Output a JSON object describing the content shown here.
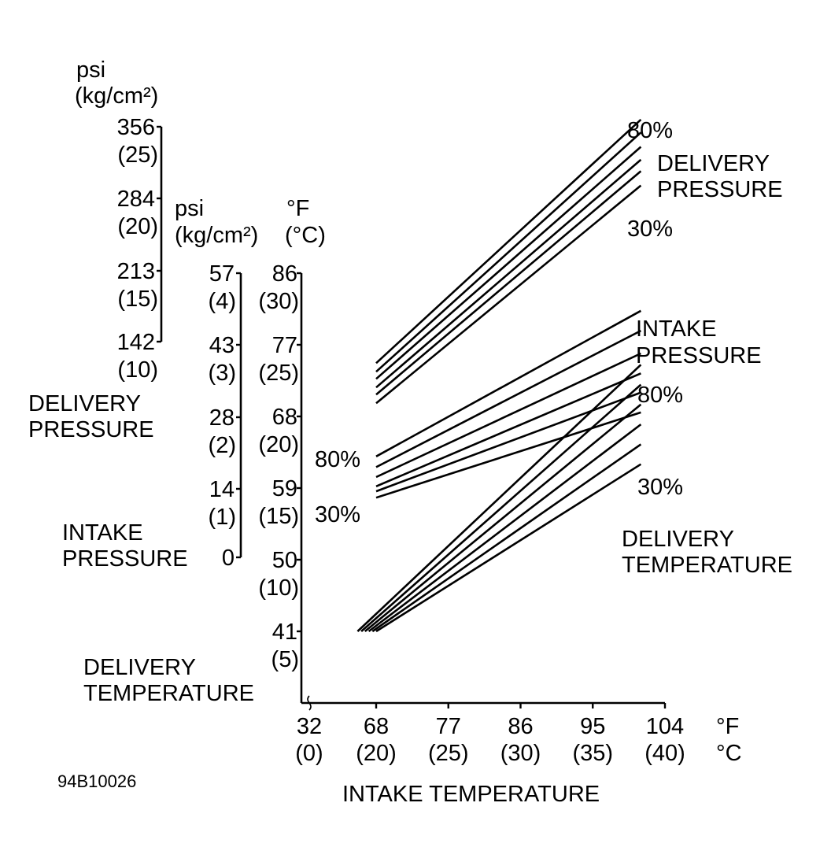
{
  "figure_id": "94B10026",
  "chart_data": {
    "type": "line",
    "title": "",
    "xlabel": "INTAKE TEMPERATURE",
    "x_units": {
      "f": "°F",
      "c": "°C"
    },
    "x_ticks": [
      {
        "f": "32",
        "c": "(0)",
        "value": 32
      },
      {
        "f": "68",
        "c": "(20)",
        "value": 68
      },
      {
        "f": "77",
        "c": "(25)",
        "value": 77
      },
      {
        "f": "86",
        "c": "(30)",
        "value": 86
      },
      {
        "f": "95",
        "c": "(35)",
        "value": 95
      },
      {
        "f": "104",
        "c": "(40)",
        "value": 104
      }
    ],
    "y_axes": [
      {
        "name": "DELIVERY PRESSURE",
        "unit": [
          "psi",
          "(kg/cm²)"
        ],
        "label": [
          "DELIVERY",
          "PRESSURE"
        ],
        "ticks": [
          {
            "main": "356",
            "sub": "(25)"
          },
          {
            "main": "284",
            "sub": "(20)"
          },
          {
            "main": "213",
            "sub": "(15)"
          },
          {
            "main": "142",
            "sub": "(10)"
          }
        ]
      },
      {
        "name": "INTAKE PRESSURE",
        "unit": [
          "psi",
          "(kg/cm²)"
        ],
        "label": [
          "INTAKE",
          "PRESSURE"
        ],
        "ticks": [
          {
            "main": "57",
            "sub": "(4)"
          },
          {
            "main": "43",
            "sub": "(3)"
          },
          {
            "main": "28",
            "sub": "(2)"
          },
          {
            "main": "14",
            "sub": "(1)"
          },
          {
            "main": "0",
            "sub": ""
          }
        ]
      },
      {
        "name": "DELIVERY TEMPERATURE",
        "unit": [
          "°F",
          "(°C)"
        ],
        "label": [
          "DELIVERY",
          "TEMPERATURE"
        ],
        "ticks": [
          {
            "main": "86",
            "sub": "(30)",
            "value": 86
          },
          {
            "main": "77",
            "sub": "(25)",
            "value": 77
          },
          {
            "main": "68",
            "sub": "(20)",
            "value": 68
          },
          {
            "main": "59",
            "sub": "(15)",
            "value": 59
          },
          {
            "main": "50",
            "sub": "(10)",
            "value": 50
          },
          {
            "main": "41",
            "sub": "(5)",
            "value": 41
          }
        ]
      }
    ],
    "groups": [
      {
        "name": "DELIVERY PRESSURE",
        "label": [
          "DELIVERY",
          "PRESSURE"
        ],
        "range_labels": {
          "high": "80%",
          "low": "30%"
        },
        "axis": "DELIVERY PRESSURE",
        "series": [
          {
            "x": [
              68,
              101
            ],
            "y": [
              8.5,
              25.5
            ]
          },
          {
            "x": [
              68,
              101
            ],
            "y": [
              7.9,
              24.6
            ]
          },
          {
            "x": [
              68,
              101
            ],
            "y": [
              7.4,
              23.6
            ]
          },
          {
            "x": [
              68,
              101
            ],
            "y": [
              6.8,
              22.7
            ]
          },
          {
            "x": [
              68,
              101
            ],
            "y": [
              6.3,
              21.9
            ]
          },
          {
            "x": [
              68,
              101
            ],
            "y": [
              5.7,
              20.9
            ]
          }
        ]
      },
      {
        "name": "INTAKE PRESSURE",
        "label": [
          "INTAKE",
          "PRESSURE"
        ],
        "axis": "INTAKE PRESSURE",
        "series": [
          {
            "x": [
              68,
              101
            ],
            "y": [
              1.42,
              3.47
            ]
          },
          {
            "x": [
              68,
              101
            ],
            "y": [
              1.27,
              3.19
            ]
          },
          {
            "x": [
              68,
              101
            ],
            "y": [
              1.13,
              2.87
            ]
          },
          {
            "x": [
              68,
              101
            ],
            "y": [
              1.0,
              2.59
            ]
          },
          {
            "x": [
              68,
              101
            ],
            "y": [
              0.93,
              2.32
            ]
          },
          {
            "x": [
              68,
              101
            ],
            "y": [
              0.84,
              2.04
            ]
          }
        ]
      },
      {
        "name": "DELIVERY TEMPERATURE",
        "label": [
          "DELIVERY",
          "TEMPERATURE"
        ],
        "range_labels": {
          "high": "80%",
          "low": "30%"
        },
        "left_range_labels": {
          "high": "80%",
          "low": "30%"
        },
        "axis": "DELIVERY TEMPERATURE",
        "series": [
          {
            "x": [
              58,
              101
            ],
            "y": [
              41,
              74.5
            ]
          },
          {
            "x": [
              60,
              101
            ],
            "y": [
              41,
              72
            ]
          },
          {
            "x": [
              62,
              101
            ],
            "y": [
              41,
              69.5
            ]
          },
          {
            "x": [
              64,
              101
            ],
            "y": [
              41,
              67
            ]
          },
          {
            "x": [
              66,
              101
            ],
            "y": [
              41,
              64.5
            ]
          },
          {
            "x": [
              68,
              101
            ],
            "y": [
              41,
              62
            ]
          }
        ]
      }
    ]
  }
}
